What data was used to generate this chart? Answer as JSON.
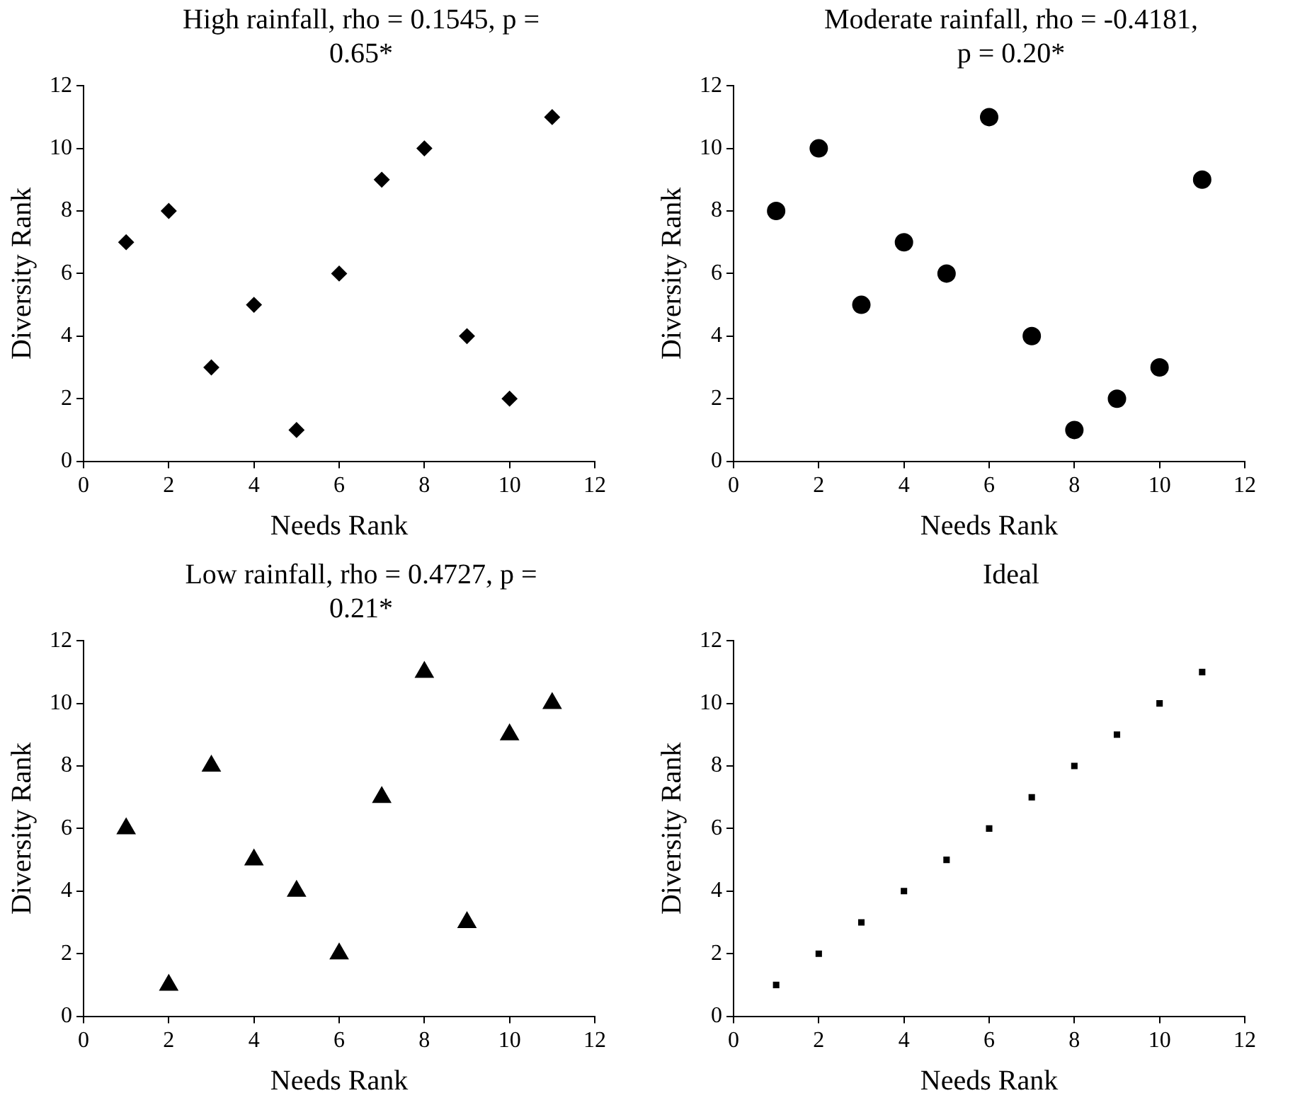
{
  "chart_data": [
    {
      "type": "scatter",
      "title": "High rainfall, rho = 0.1545, p = 0.65*",
      "xlabel": "Needs Rank",
      "ylabel": "Diversity Rank",
      "marker": "diamond",
      "color": "#000000",
      "x": [
        1,
        2,
        3,
        4,
        5,
        6,
        7,
        8,
        9,
        10,
        11
      ],
      "values": [
        7,
        8,
        3,
        5,
        1,
        6,
        9,
        10,
        4,
        2,
        11
      ],
      "xlim": [
        0,
        12
      ],
      "xticks": [
        0,
        2,
        4,
        6,
        8,
        10,
        12
      ],
      "ylim": [
        0,
        12
      ],
      "yticks": [
        0,
        2,
        4,
        6,
        8,
        10,
        12
      ]
    },
    {
      "type": "scatter",
      "title": "Moderate rainfall, rho = -0.4181, p = 0.20*",
      "xlabel": "Needs Rank",
      "ylabel": "Diversity Rank",
      "marker": "circle",
      "color": "#000000",
      "x": [
        1,
        2,
        3,
        4,
        5,
        6,
        7,
        8,
        9,
        10,
        11
      ],
      "values": [
        8,
        10,
        5,
        7,
        6,
        11,
        4,
        1,
        2,
        3,
        9
      ],
      "xlim": [
        0,
        12
      ],
      "xticks": [
        0,
        2,
        4,
        6,
        8,
        10,
        12
      ],
      "ylim": [
        0,
        12
      ],
      "yticks": [
        0,
        2,
        4,
        6,
        8,
        10,
        12
      ]
    },
    {
      "type": "scatter",
      "title": "Low rainfall, rho = 0.4727, p = 0.21*",
      "xlabel": "Needs Rank",
      "ylabel": "Diversity Rank",
      "marker": "triangle",
      "color": "#000000",
      "x": [
        1,
        2,
        3,
        4,
        5,
        6,
        7,
        8,
        9,
        10,
        11
      ],
      "values": [
        6,
        1,
        8,
        5,
        4,
        2,
        7,
        11,
        3,
        9,
        10
      ],
      "xlim": [
        0,
        12
      ],
      "xticks": [
        0,
        2,
        4,
        6,
        8,
        10,
        12
      ],
      "ylim": [
        0,
        12
      ],
      "yticks": [
        0,
        2,
        4,
        6,
        8,
        10,
        12
      ]
    },
    {
      "type": "scatter",
      "title": "Ideal",
      "xlabel": "Needs Rank",
      "ylabel": "Diversity Rank",
      "marker": "square",
      "color": "#000000",
      "x": [
        1,
        2,
        3,
        4,
        5,
        6,
        7,
        8,
        9,
        10,
        11
      ],
      "values": [
        1,
        2,
        3,
        4,
        5,
        6,
        7,
        8,
        9,
        10,
        11
      ],
      "xlim": [
        0,
        12
      ],
      "xticks": [
        0,
        2,
        4,
        6,
        8,
        10,
        12
      ],
      "ylim": [
        0,
        12
      ],
      "yticks": [
        0,
        2,
        4,
        6,
        8,
        10,
        12
      ]
    }
  ]
}
